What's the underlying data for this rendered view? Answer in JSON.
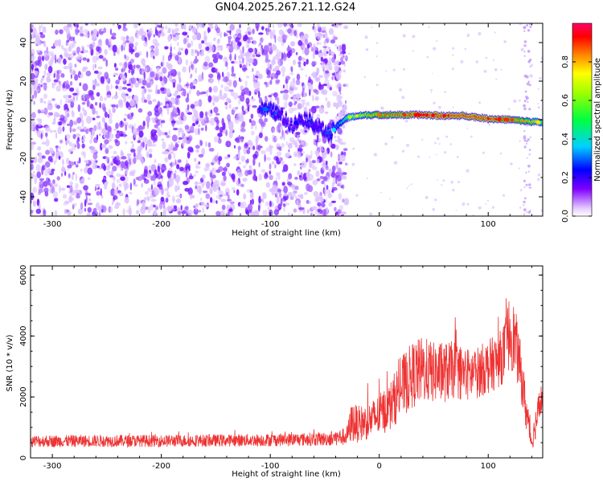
{
  "chart_data": [
    {
      "type": "heatmap",
      "title": "GN04.2025.267.21.12.G24",
      "xlabel": "Height of straight line (km)",
      "ylabel": "Frequency (Hz)",
      "xlim": [
        -320,
        150
      ],
      "ylim": [
        -50,
        50
      ],
      "xticks": [
        -300,
        -200,
        -100,
        0,
        100
      ],
      "yticks": [
        -40,
        -20,
        0,
        20,
        40
      ],
      "colorbar": {
        "label": "Normalized spectral amplitude",
        "range": [
          0,
          1
        ],
        "ticks": [
          0.0,
          0.2,
          0.4,
          0.6,
          0.8
        ],
        "colormap": [
          "#ffffff",
          "#e0c8ff",
          "#8000ff",
          "#0000ff",
          "#00ffff",
          "#00ff00",
          "#ffff00",
          "#ff8000",
          "#ff0000",
          "#ff0080"
        ]
      },
      "ridge": {
        "x": [
          -110,
          -100,
          -90,
          -80,
          -70,
          -60,
          -50,
          -45,
          -40,
          -30,
          -20,
          -10,
          0,
          20,
          40,
          60,
          80,
          100,
          120,
          140,
          150
        ],
        "freq": [
          6,
          5,
          2,
          -3,
          1,
          -2,
          -6,
          -8,
          -4,
          1,
          2,
          2.5,
          2.5,
          2.5,
          2.5,
          2,
          2,
          0.5,
          0,
          -1,
          -1.5
        ],
        "amplitude": [
          0.3,
          0.35,
          0.3,
          0.25,
          0.3,
          0.3,
          0.3,
          0.35,
          0.4,
          0.55,
          0.65,
          0.7,
          0.75,
          0.8,
          0.85,
          0.85,
          0.85,
          0.85,
          0.8,
          0.7,
          0.6
        ]
      },
      "noise_region_x": [
        -320,
        -40
      ],
      "noise_amplitude": 0.15
    },
    {
      "type": "line",
      "title": "",
      "xlabel": "Height of straight line (km)",
      "ylabel": "SNR (10 * v/v)",
      "xlim": [
        -320,
        150
      ],
      "ylim": [
        0,
        6300
      ],
      "xticks": [
        -300,
        -200,
        -100,
        0,
        100
      ],
      "yticks": [
        0,
        2000,
        4000,
        6000
      ],
      "color": "#ee3333",
      "series": [
        {
          "x": [
            -320,
            -300,
            -250,
            -200,
            -150,
            -100,
            -50,
            -30,
            -25,
            -20,
            -10,
            0,
            10,
            20,
            30,
            40,
            50,
            60,
            70,
            80,
            90,
            100,
            110,
            115,
            120,
            125,
            130,
            135,
            140,
            145,
            150
          ],
          "mean": [
            550,
            550,
            560,
            560,
            570,
            590,
            620,
            700,
            1200,
            1100,
            1200,
            1400,
            1700,
            2300,
            2700,
            2900,
            2800,
            2800,
            2900,
            2700,
            2800,
            3000,
            3200,
            3500,
            4200,
            3800,
            2800,
            1500,
            500,
            1400,
            2100
          ],
          "spread": [
            200,
            200,
            200,
            200,
            200,
            210,
            230,
            300,
            700,
            600,
            600,
            700,
            800,
            1000,
            1100,
            1100,
            1000,
            1000,
            950,
            900,
            850,
            900,
            900,
            1000,
            1300,
            1100,
            900,
            700,
            300,
            600,
            500
          ]
        }
      ]
    }
  ]
}
